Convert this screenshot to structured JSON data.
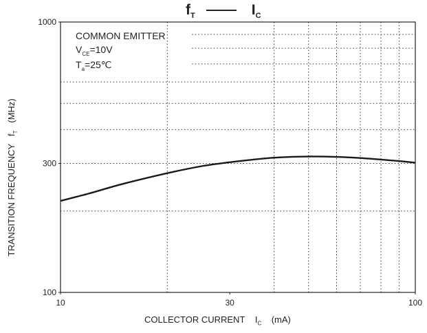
{
  "chart_data": {
    "type": "line",
    "title": {
      "left_main": "f",
      "left_sub": "T",
      "right_main": "I",
      "right_sub": "C"
    },
    "xlabel": {
      "main": "COLLECTOR CURRENT",
      "sym": "I",
      "sub": "C",
      "unit": "(mA)"
    },
    "ylabel": {
      "main": "TRANSITION FREQUENCY",
      "sym": "f",
      "sub": "T",
      "unit": "(MHz)"
    },
    "x_scale": "log",
    "y_scale": "log",
    "xlim": [
      10,
      100
    ],
    "ylim": [
      100,
      1000
    ],
    "x_ticks": [
      10,
      30,
      100
    ],
    "y_ticks": [
      100,
      300,
      1000
    ],
    "x_grid": [
      20,
      40,
      50,
      60,
      70,
      80,
      90
    ],
    "y_grid": [
      200,
      300,
      400,
      500,
      600,
      700,
      800,
      900
    ],
    "grid": true,
    "annotations": {
      "line1": "COMMON EMITTER",
      "line2_main": "V",
      "line2_sub": "CE",
      "line2_rest": "=10V",
      "line3_main": "T",
      "line3_sub": "a",
      "line3_rest": "=25℃"
    },
    "series": [
      {
        "x": [
          10,
          12,
          15,
          20,
          25,
          30,
          40,
          50,
          60,
          70,
          80,
          90,
          100
        ],
        "y": [
          218,
          232,
          252,
          276,
          293,
          303,
          315,
          318,
          317,
          314,
          310,
          306,
          302
        ]
      }
    ]
  }
}
